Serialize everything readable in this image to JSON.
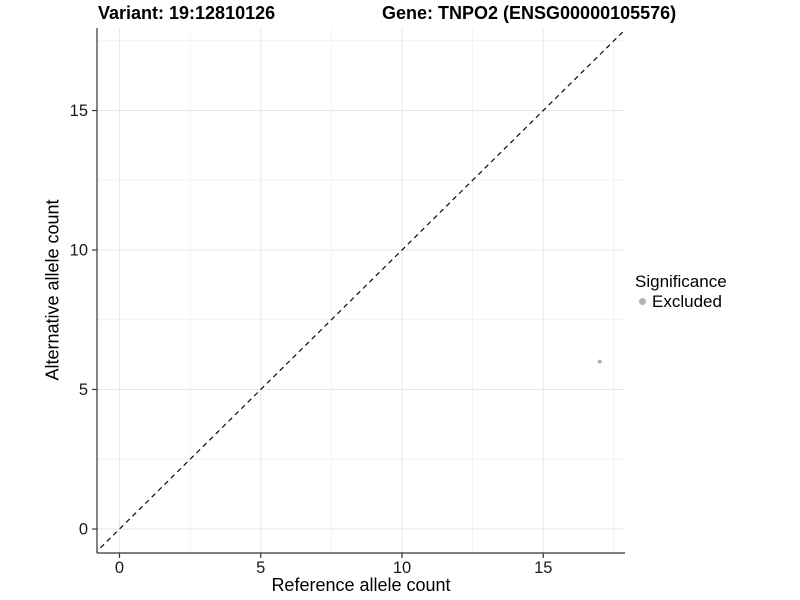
{
  "chart_data": {
    "type": "scatter",
    "titles": [
      "Variant: 19:12810126",
      "Gene: TNPO2 (ENSG00000105576)"
    ],
    "xlabel": "Reference allele count",
    "ylabel": "Alternative allele count",
    "xlim": [
      -0.9,
      17.9
    ],
    "ylim": [
      -0.9,
      17.9
    ],
    "x_ticks": [
      0,
      5,
      10,
      15
    ],
    "y_ticks": [
      0,
      5,
      10,
      15
    ],
    "x_minor_ticks": [
      2.5,
      7.5,
      12.5,
      17.5
    ],
    "y_minor_ticks": [
      2.5,
      7.5,
      12.5,
      17.5
    ],
    "grid": "major+minor",
    "series": [
      {
        "name": "Excluded",
        "color": "#b3b3b3",
        "points": [
          {
            "x": 17,
            "y": 6
          }
        ]
      }
    ],
    "reference_line": {
      "kind": "identity y=x",
      "style": "dashed",
      "color": "#0a0a0a"
    },
    "legend": {
      "title": "Significance",
      "position": "right",
      "entries": [
        {
          "label": "Excluded",
          "swatch_color": "#b3b3b3"
        }
      ]
    }
  },
  "style_colors": {
    "background": "#ffffff",
    "grid_major": "#e7e7e7",
    "grid_minor": "#f2f2f2",
    "axis_line": "#333333",
    "tick_mark": "#333333",
    "tick_label": "#1a1a1a"
  }
}
